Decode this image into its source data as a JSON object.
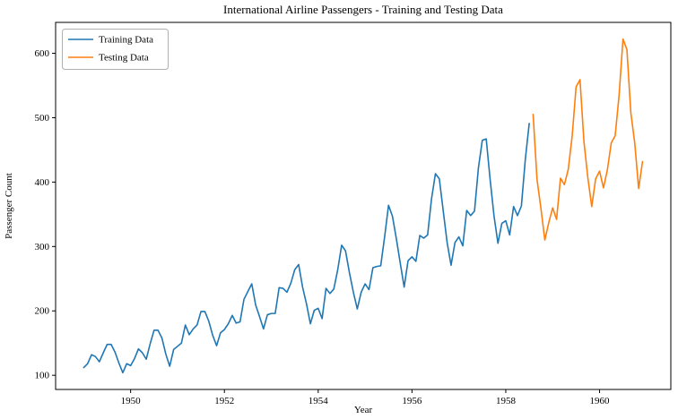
{
  "chart_data": {
    "type": "line",
    "title": "International Airline Passengers - Training and Testing Data",
    "xlabel": "Year",
    "ylabel": "Passenger Count",
    "xlim": [
      1948.4,
      1961.52
    ],
    "ylim": [
      78,
      648
    ],
    "x_ticks": [
      1950,
      1952,
      1954,
      1956,
      1958,
      1960
    ],
    "y_ticks": [
      100,
      200,
      300,
      400,
      500,
      600
    ],
    "grid": false,
    "legend": {
      "position": "upper left"
    },
    "series": [
      {
        "name": "Training Data",
        "color": "#1f77b4",
        "x_start": 1949.0,
        "x_step": 0.0833333,
        "values": [
          112,
          118,
          132,
          129,
          121,
          135,
          148,
          148,
          136,
          119,
          104,
          118,
          115,
          126,
          141,
          135,
          125,
          149,
          170,
          170,
          158,
          133,
          114,
          140,
          145,
          150,
          178,
          163,
          172,
          178,
          199,
          199,
          184,
          162,
          146,
          166,
          171,
          180,
          193,
          181,
          183,
          218,
          230,
          242,
          209,
          191,
          172,
          194,
          196,
          196,
          236,
          235,
          229,
          243,
          264,
          272,
          237,
          211,
          180,
          201,
          204,
          188,
          235,
          227,
          234,
          264,
          302,
          293,
          259,
          229,
          203,
          229,
          242,
          233,
          267,
          269,
          270,
          315,
          364,
          347,
          312,
          274,
          237,
          278,
          284,
          277,
          317,
          313,
          318,
          374,
          413,
          405,
          355,
          306,
          271,
          306,
          315,
          301,
          356,
          348,
          355,
          422,
          465,
          467,
          404,
          347,
          305,
          336,
          340,
          318,
          362,
          348,
          363,
          435,
          491
        ]
      },
      {
        "name": "Testing Data",
        "color": "#ff7f0e",
        "x_start": 1958.5833333,
        "x_step": 0.0833333,
        "values": [
          505,
          404,
          359,
          310,
          337,
          360,
          342,
          406,
          396,
          420,
          472,
          548,
          559,
          463,
          407,
          362,
          405,
          417,
          391,
          419,
          461,
          472,
          535,
          622,
          606,
          508,
          461,
          390,
          432
        ]
      }
    ]
  }
}
